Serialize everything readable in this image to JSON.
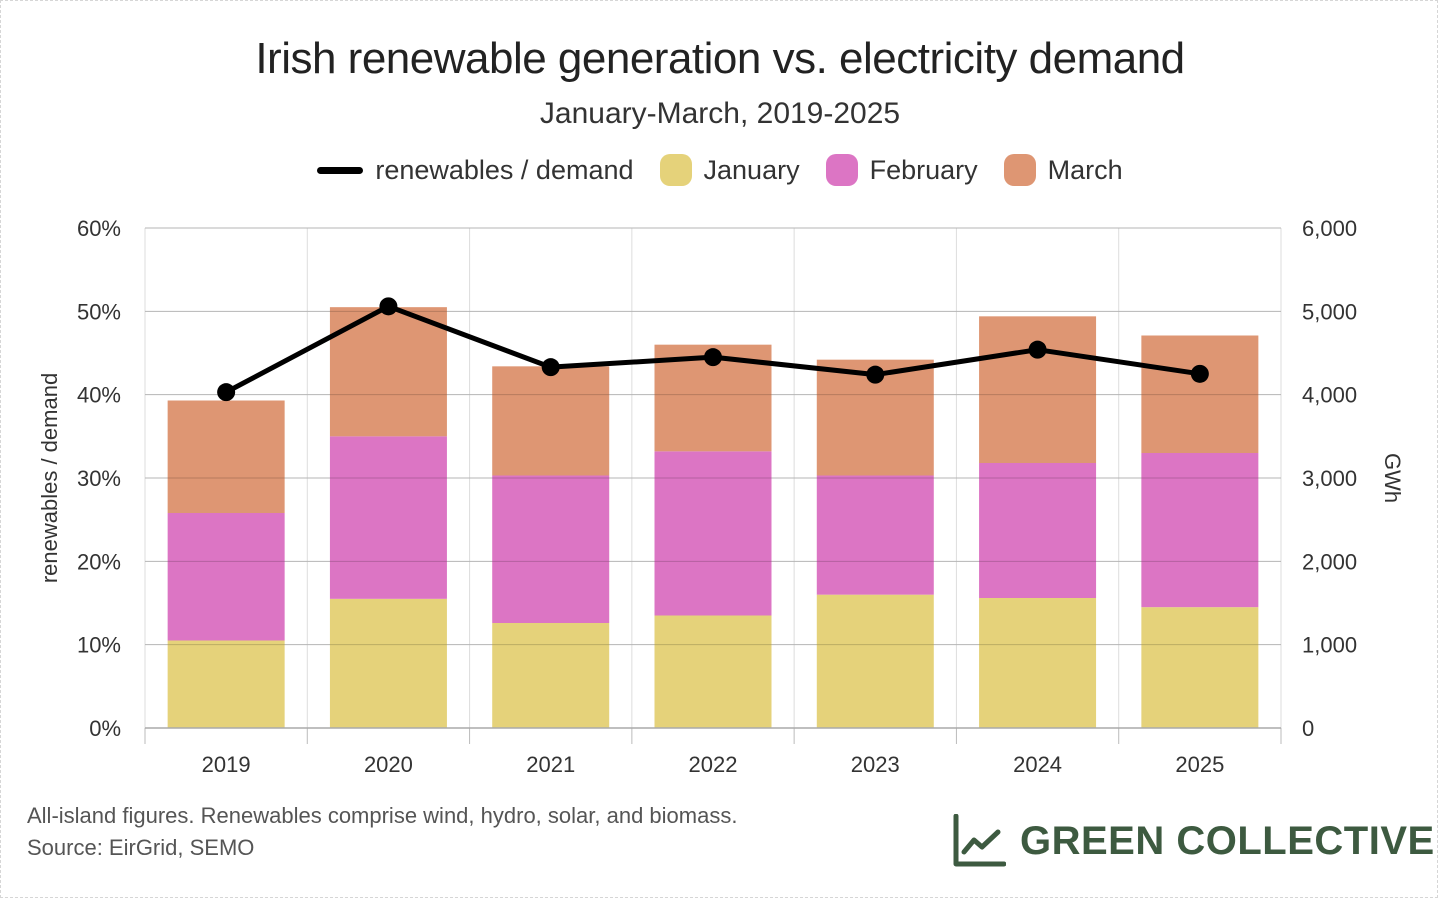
{
  "title": "Irish renewable generation vs. electricity demand",
  "subtitle": "January-March, 2019-2025",
  "legend": [
    {
      "label": "renewables / demand",
      "kind": "line",
      "color": "#000000"
    },
    {
      "label": "January",
      "kind": "swatch",
      "color": "#e5d27a"
    },
    {
      "label": "February",
      "kind": "swatch",
      "color": "#dc75c4"
    },
    {
      "label": "March",
      "kind": "swatch",
      "color": "#de9673"
    }
  ],
  "footnote": {
    "line1": "All-island figures. Renewables comprise wind, hydro, solar, and biomass.",
    "line2": "Source: EirGrid, SEMO"
  },
  "brand": {
    "name": "GREEN COLLECTIVE",
    "color": "#3d5a40",
    "icon": "trend-chart-icon"
  },
  "chart_data": {
    "type": "bar",
    "stacked": true,
    "categories": [
      "2019",
      "2020",
      "2021",
      "2022",
      "2023",
      "2024",
      "2025"
    ],
    "series": [
      {
        "name": "January",
        "color": "#e5d27a",
        "axis": "right",
        "values": [
          1050,
          1550,
          1260,
          1350,
          1600,
          1560,
          1450
        ]
      },
      {
        "name": "February",
        "color": "#dc75c4",
        "axis": "right",
        "values": [
          1530,
          1950,
          1770,
          1970,
          1430,
          1620,
          1850
        ]
      },
      {
        "name": "March",
        "color": "#de9673",
        "axis": "right",
        "values": [
          1350,
          1550,
          1310,
          1280,
          1390,
          1760,
          1410
        ]
      },
      {
        "name": "renewables / demand",
        "type": "line",
        "color": "#000000",
        "axis": "left",
        "values": [
          40.3,
          50.6,
          43.3,
          44.5,
          42.4,
          45.4,
          42.5
        ]
      }
    ],
    "ylabel": "renewables / demand",
    "y2label": "GWh",
    "ylim": [
      0,
      60
    ],
    "y2lim": [
      0,
      6000
    ],
    "yticks": [
      "0%",
      "10%",
      "20%",
      "30%",
      "40%",
      "50%",
      "60%"
    ],
    "y2ticks": [
      "0",
      "1,000",
      "2,000",
      "3,000",
      "4,000",
      "5,000",
      "6,000"
    ],
    "grid": true
  }
}
